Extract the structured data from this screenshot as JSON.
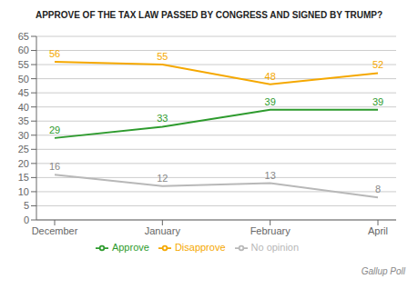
{
  "chart_data": {
    "type": "line",
    "title": "APPROVE OF THE TAX LAW PASSED BY CONGRESS AND SIGNED BY TRUMP?",
    "categories": [
      "December",
      "January",
      "February",
      "April"
    ],
    "series": [
      {
        "name": "Approve",
        "color": "#2e9b2e",
        "values": [
          29,
          33,
          39,
          39
        ]
      },
      {
        "name": "Disapprove",
        "color": "#f5a800",
        "values": [
          56,
          55,
          48,
          52
        ]
      },
      {
        "name": "No opinion",
        "color": "#b8b8b8",
        "values": [
          16,
          12,
          13,
          8
        ]
      }
    ],
    "ylim": [
      0,
      65
    ],
    "yticks": [
      0,
      5,
      10,
      15,
      20,
      25,
      30,
      35,
      40,
      45,
      50,
      55,
      60,
      65
    ],
    "grid": true,
    "data_labels": true,
    "legend": "bottom",
    "annotations": [
      "Gallup Poll"
    ]
  }
}
